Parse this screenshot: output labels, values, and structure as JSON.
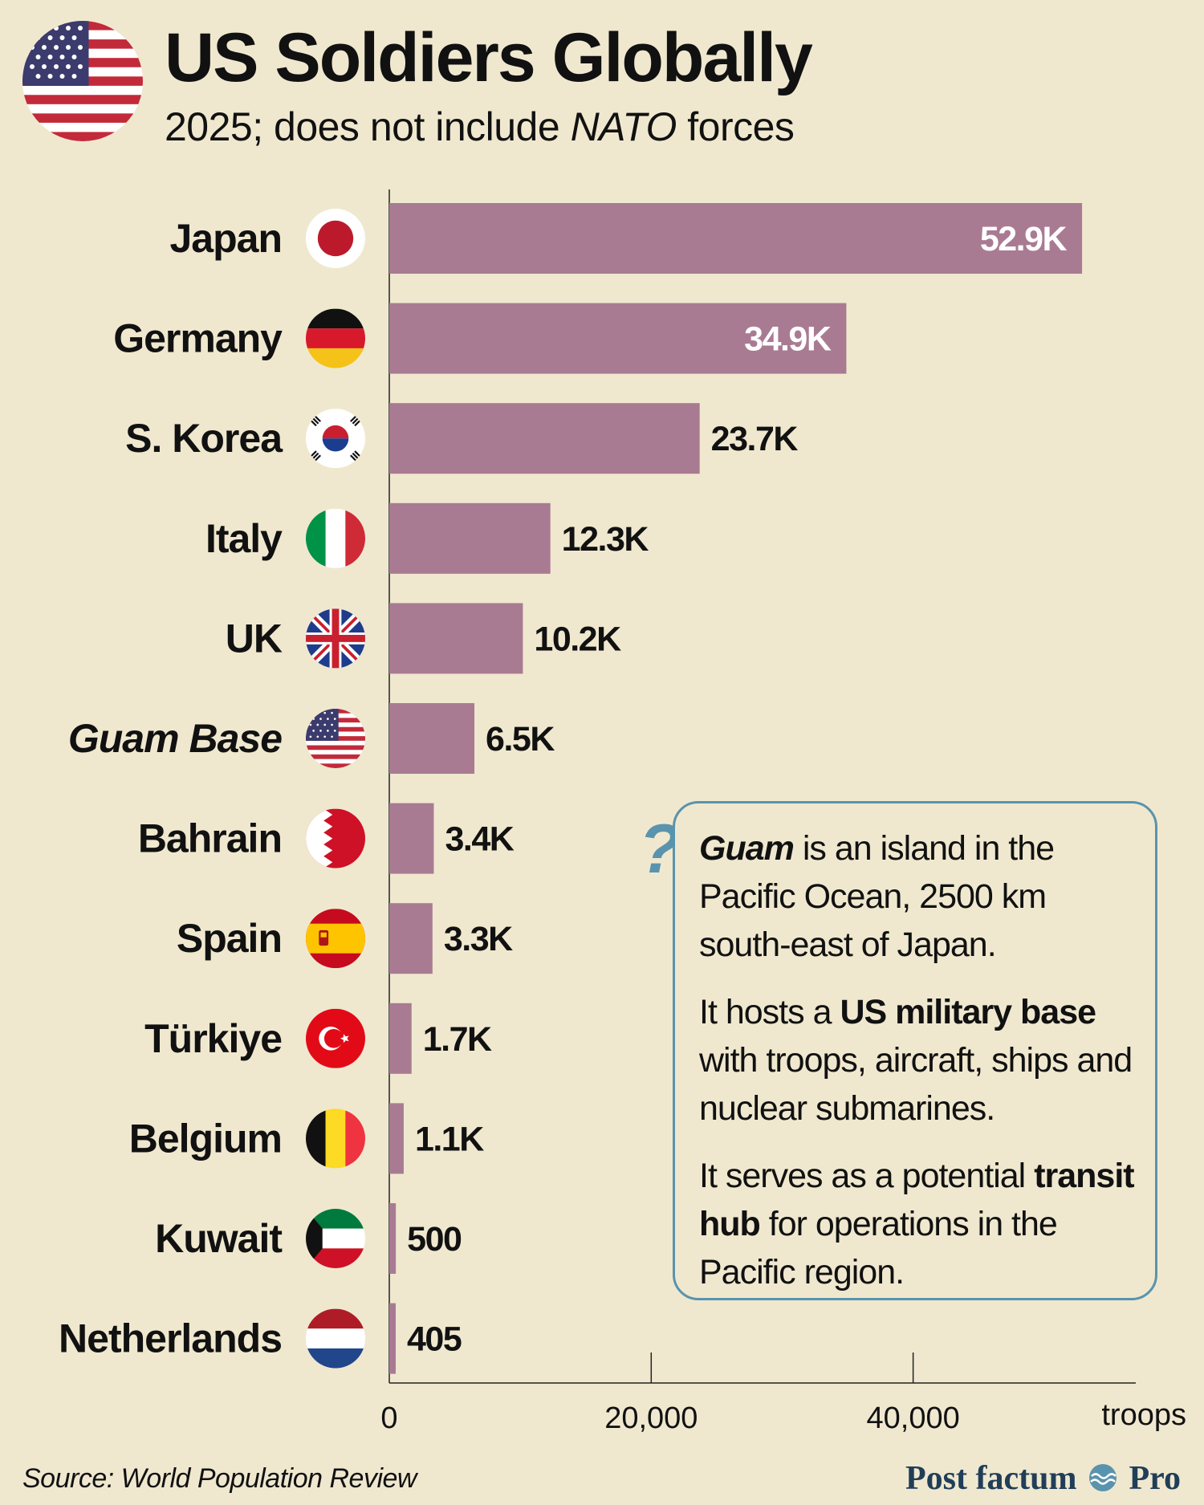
{
  "header": {
    "title": "US Soldiers Globally",
    "subtitle_before": "2025; does not include ",
    "subtitle_em": "NATO",
    "subtitle_after": " forces",
    "flag_icon": "us-flag-icon"
  },
  "chart_data": {
    "type": "bar",
    "orientation": "horizontal",
    "categories": [
      "Japan",
      "Germany",
      "S. Korea",
      "Italy",
      "UK",
      "Guam Base",
      "Bahrain",
      "Spain",
      "Türkiye",
      "Belgium",
      "Kuwait",
      "Netherlands"
    ],
    "values": [
      52900,
      34900,
      23700,
      12300,
      10200,
      6500,
      3400,
      3300,
      1700,
      1100,
      500,
      405
    ],
    "value_labels": [
      "52.9K",
      "34.9K",
      "23.7K",
      "12.3K",
      "10.2K",
      "6.5K",
      "3.4K",
      "3.3K",
      "1.7K",
      "1.1K",
      "500",
      "405"
    ],
    "italic_categories": [
      "Guam Base"
    ],
    "flag_icons": [
      "japan-flag-icon",
      "germany-flag-icon",
      "south-korea-flag-icon",
      "italy-flag-icon",
      "uk-flag-icon",
      "us-flag-icon",
      "bahrain-flag-icon",
      "spain-flag-icon",
      "turkiye-flag-icon",
      "belgium-flag-icon",
      "kuwait-flag-icon",
      "netherlands-flag-icon"
    ],
    "xlim": [
      0,
      57000
    ],
    "xticks": [
      0,
      20000,
      40000
    ],
    "xtick_labels": [
      "0",
      "20,000",
      "40,000"
    ],
    "xlabel": "troops",
    "bar_color": "#a97b93",
    "grid": false
  },
  "info_box": {
    "mark": "?",
    "p1_strong": "Guam",
    "p1_rest": " is an island in the Pacific Ocean, 2500 km south-east of Japan.",
    "p2_before": "It hosts a ",
    "p2_strong": "US military base",
    "p2_after": " with troops, aircraft, ships and nuclear submarines.",
    "p3_before": "It serves as a potential ",
    "p3_strong": "transit hub",
    "p3_after": " for operations in the Pacific region."
  },
  "footer": {
    "source": "Source: World Population Review",
    "brand_left": "Post factum",
    "brand_right": "Pro",
    "brand_icon": "wave-logo-icon"
  },
  "colors": {
    "background": "#efe8cf",
    "bar": "#a97b93",
    "info_border": "#5a93ad",
    "brand": "#213e58"
  }
}
